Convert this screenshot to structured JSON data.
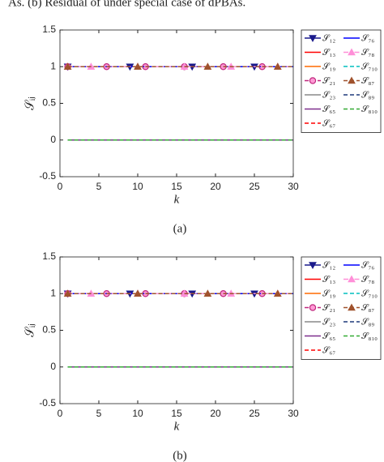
{
  "caption_fragment": "As. (b) Residual of under special case of dPBAs.",
  "chart_data": [
    {
      "type": "line",
      "caption": "(a)",
      "xlabel": "k",
      "ylabel": "𝒮ᵢⱼ",
      "x": [
        1,
        2,
        3,
        4,
        5,
        6,
        7,
        8,
        9,
        10,
        11,
        12,
        13,
        14,
        15,
        16,
        17,
        18,
        19,
        20,
        21,
        22,
        23,
        24,
        25,
        26,
        27,
        28,
        29,
        30
      ],
      "xlim": [
        0,
        30
      ],
      "xticks": [
        0,
        5,
        10,
        15,
        20,
        25,
        30
      ],
      "ylim": [
        -0.5,
        1.5
      ],
      "yticks": [
        -0.5,
        0,
        0.5,
        1,
        1.5
      ],
      "legend": "outside-right",
      "series": [
        {
          "name": "𝒮₁₂",
          "color": "#1a1a8c",
          "linestyle": "solid",
          "marker": "triangle-down",
          "values": [
            1,
            1,
            1,
            1,
            1,
            1,
            1,
            1,
            1,
            1,
            1,
            1,
            1,
            1,
            1,
            1,
            1,
            1,
            1,
            1,
            1,
            1,
            1,
            1,
            1,
            1,
            1,
            1,
            1,
            1
          ]
        },
        {
          "name": "𝒮₁₃",
          "color": "#ff0000",
          "linestyle": "solid",
          "values": [
            1,
            1,
            1,
            1,
            1,
            1,
            1,
            1,
            1,
            1,
            1,
            1,
            1,
            1,
            1,
            1,
            1,
            1,
            1,
            1,
            1,
            1,
            1,
            1,
            1,
            1,
            1,
            1,
            1,
            1
          ]
        },
        {
          "name": "𝒮₁₉",
          "color": "#ff6a00",
          "linestyle": "solid",
          "values": [
            1,
            1,
            1,
            1,
            1,
            1,
            1,
            1,
            1,
            1,
            1,
            1,
            1,
            1,
            1,
            1,
            1,
            1,
            1,
            1,
            1,
            1,
            1,
            1,
            1,
            1,
            1,
            1,
            1,
            1
          ]
        },
        {
          "name": "𝒮₂₁",
          "color": "#c0297f",
          "linestyle": "dashed",
          "marker": "circle",
          "values": [
            1,
            1,
            1,
            1,
            1,
            1,
            1,
            1,
            1,
            1,
            1,
            1,
            1,
            1,
            1,
            1,
            1,
            1,
            1,
            1,
            1,
            1,
            1,
            1,
            1,
            1,
            1,
            1,
            1,
            1
          ]
        },
        {
          "name": "𝒮₂₃",
          "color": "#888888",
          "linestyle": "solid",
          "values": [
            0,
            0,
            0,
            0,
            0,
            0,
            0,
            0,
            0,
            0,
            0,
            0,
            0,
            0,
            0,
            0,
            0,
            0,
            0,
            0,
            0,
            0,
            0,
            0,
            0,
            0,
            0,
            0,
            0,
            0
          ]
        },
        {
          "name": "𝒮₆₅",
          "color": "#7e2f8e",
          "linestyle": "solid",
          "values": [
            0,
            0,
            0,
            0,
            0,
            0,
            0,
            0,
            0,
            0,
            0,
            0,
            0,
            0,
            0,
            0,
            0,
            0,
            0,
            0,
            0,
            0,
            0,
            0,
            0,
            0,
            0,
            0,
            0,
            0
          ]
        },
        {
          "name": "𝒮₆₇",
          "color": "#ff0000",
          "linestyle": "dashed",
          "values": [
            1,
            1,
            1,
            1,
            1,
            1,
            1,
            1,
            1,
            1,
            1,
            1,
            1,
            1,
            1,
            1,
            1,
            1,
            1,
            1,
            1,
            1,
            1,
            1,
            1,
            1,
            1,
            1,
            1,
            1
          ]
        },
        {
          "name": "𝒮₇₆",
          "color": "#0000ff",
          "linestyle": "solid",
          "values": [
            1,
            1,
            1,
            1,
            1,
            1,
            1,
            1,
            1,
            1,
            1,
            1,
            1,
            1,
            1,
            1,
            1,
            1,
            1,
            1,
            1,
            1,
            1,
            1,
            1,
            1,
            1,
            1,
            1,
            1
          ]
        },
        {
          "name": "𝒮₇₈",
          "color": "#ff8fd8",
          "linestyle": "dashdot",
          "marker": "triangle-up",
          "values": [
            1,
            1,
            1,
            1,
            1,
            1,
            1,
            1,
            1,
            1,
            1,
            1,
            1,
            1,
            1,
            1,
            1,
            1,
            1,
            1,
            1,
            1,
            1,
            1,
            1,
            1,
            1,
            1,
            1,
            1
          ]
        },
        {
          "name": "𝒮₇₁₀",
          "color": "#00bfbf",
          "linestyle": "dashed",
          "values": [
            1,
            1,
            1,
            1,
            1,
            1,
            1,
            1,
            1,
            1,
            1,
            1,
            1,
            1,
            1,
            1,
            1,
            1,
            1,
            1,
            1,
            1,
            1,
            1,
            1,
            1,
            1,
            1,
            1,
            1
          ]
        },
        {
          "name": "𝒮₈₇",
          "color": "#a0522d",
          "linestyle": "dashed",
          "marker": "triangle-up",
          "values": [
            1,
            1,
            1,
            1,
            1,
            1,
            1,
            1,
            1,
            1,
            1,
            1,
            1,
            1,
            1,
            1,
            1,
            1,
            1,
            1,
            1,
            1,
            1,
            1,
            1,
            1,
            1,
            1,
            1,
            1
          ]
        },
        {
          "name": "𝒮₈₉",
          "color": "#1f3a7a",
          "linestyle": "dashed",
          "values": [
            0,
            0,
            0,
            0,
            0,
            0,
            0,
            0,
            0,
            0,
            0,
            0,
            0,
            0,
            0,
            0,
            0,
            0,
            0,
            0,
            0,
            0,
            0,
            0,
            0,
            0,
            0,
            0,
            0,
            0
          ]
        },
        {
          "name": "𝒮₈₁₀",
          "color": "#33aa33",
          "linestyle": "dashed",
          "values": [
            0,
            0,
            0,
            0,
            0,
            0,
            0,
            0,
            0,
            0,
            0,
            0,
            0,
            0,
            0,
            0,
            0,
            0,
            0,
            0,
            0,
            0,
            0,
            0,
            0,
            0,
            0,
            0,
            0,
            0
          ]
        }
      ]
    },
    {
      "type": "line",
      "caption": "(b)",
      "xlabel": "k",
      "ylabel": "𝒮ᵢⱼ",
      "x": [
        1,
        2,
        3,
        4,
        5,
        6,
        7,
        8,
        9,
        10,
        11,
        12,
        13,
        14,
        15,
        16,
        17,
        18,
        19,
        20,
        21,
        22,
        23,
        24,
        25,
        26,
        27,
        28,
        29,
        30
      ],
      "xlim": [
        0,
        30
      ],
      "xticks": [
        0,
        5,
        10,
        15,
        20,
        25,
        30
      ],
      "ylim": [
        -0.5,
        1.5
      ],
      "yticks": [
        -0.5,
        0,
        0.5,
        1,
        1.5
      ],
      "legend": "outside-right",
      "series": [
        {
          "name": "𝒮₁₂",
          "color": "#1a1a8c",
          "linestyle": "solid",
          "marker": "triangle-down",
          "values": [
            1,
            1,
            1,
            1,
            1,
            1,
            1,
            1,
            1,
            1,
            1,
            1,
            1,
            1,
            1,
            1,
            1,
            1,
            1,
            1,
            1,
            1,
            1,
            1,
            1,
            1,
            1,
            1,
            1,
            1
          ]
        },
        {
          "name": "𝒮₁₃",
          "color": "#ff0000",
          "linestyle": "solid",
          "values": [
            1,
            1,
            1,
            1,
            1,
            1,
            1,
            1,
            1,
            1,
            1,
            1,
            1,
            1,
            1,
            1,
            1,
            1,
            1,
            1,
            1,
            1,
            1,
            1,
            1,
            1,
            1,
            1,
            1,
            1
          ]
        },
        {
          "name": "𝒮₁₉",
          "color": "#ff6a00",
          "linestyle": "solid",
          "values": [
            1,
            1,
            1,
            1,
            1,
            1,
            1,
            1,
            1,
            1,
            1,
            1,
            1,
            1,
            1,
            1,
            1,
            1,
            1,
            1,
            1,
            1,
            1,
            1,
            1,
            1,
            1,
            1,
            1,
            1
          ]
        },
        {
          "name": "𝒮₂₁",
          "color": "#c0297f",
          "linestyle": "dashed",
          "marker": "circle",
          "values": [
            1,
            1,
            1,
            1,
            1,
            1,
            1,
            1,
            1,
            1,
            1,
            1,
            1,
            1,
            1,
            1,
            1,
            1,
            1,
            1,
            1,
            1,
            1,
            1,
            1,
            1,
            1,
            1,
            1,
            1
          ]
        },
        {
          "name": "𝒮₂₃",
          "color": "#888888",
          "linestyle": "solid",
          "values": [
            0,
            0,
            0,
            0,
            0,
            0,
            0,
            0,
            0,
            0,
            0,
            0,
            0,
            0,
            0,
            0,
            0,
            0,
            0,
            0,
            0,
            0,
            0,
            0,
            0,
            0,
            0,
            0,
            0,
            0
          ]
        },
        {
          "name": "𝒮₆₅",
          "color": "#7e2f8e",
          "linestyle": "solid",
          "values": [
            0,
            0,
            0,
            0,
            0,
            0,
            0,
            0,
            0,
            0,
            0,
            0,
            0,
            0,
            0,
            0,
            0,
            0,
            0,
            0,
            0,
            0,
            0,
            0,
            0,
            0,
            0,
            0,
            0,
            0
          ]
        },
        {
          "name": "𝒮₆₇",
          "color": "#ff0000",
          "linestyle": "dashed",
          "values": [
            1,
            1,
            1,
            1,
            1,
            1,
            1,
            1,
            1,
            1,
            1,
            1,
            1,
            1,
            1,
            1,
            1,
            1,
            1,
            1,
            1,
            1,
            1,
            1,
            1,
            1,
            1,
            1,
            1,
            1
          ]
        },
        {
          "name": "𝒮₇₆",
          "color": "#0000ff",
          "linestyle": "solid",
          "values": [
            1,
            1,
            1,
            1,
            1,
            1,
            1,
            1,
            1,
            1,
            1,
            1,
            1,
            1,
            1,
            1,
            1,
            1,
            1,
            1,
            1,
            1,
            1,
            1,
            1,
            1,
            1,
            1,
            1,
            1
          ]
        },
        {
          "name": "𝒮₇₈",
          "color": "#ff8fd8",
          "linestyle": "dashdot",
          "marker": "triangle-up",
          "values": [
            1,
            1,
            1,
            1,
            1,
            1,
            1,
            1,
            1,
            1,
            1,
            1,
            1,
            1,
            1,
            1,
            1,
            1,
            1,
            1,
            1,
            1,
            1,
            1,
            1,
            1,
            1,
            1,
            1,
            1
          ]
        },
        {
          "name": "𝒮₇₁₀",
          "color": "#00bfbf",
          "linestyle": "dashed",
          "values": [
            1,
            1,
            1,
            1,
            1,
            1,
            1,
            1,
            1,
            1,
            1,
            1,
            1,
            1,
            1,
            1,
            1,
            1,
            1,
            1,
            1,
            1,
            1,
            1,
            1,
            1,
            1,
            1,
            1,
            1
          ]
        },
        {
          "name": "𝒮₈₇",
          "color": "#a0522d",
          "linestyle": "dashed",
          "marker": "triangle-up",
          "values": [
            1,
            1,
            1,
            1,
            1,
            1,
            1,
            1,
            1,
            1,
            1,
            1,
            1,
            1,
            1,
            1,
            1,
            1,
            1,
            1,
            1,
            1,
            1,
            1,
            1,
            1,
            1,
            1,
            1,
            1
          ]
        },
        {
          "name": "𝒮₈₉",
          "color": "#1f3a7a",
          "linestyle": "dashed",
          "values": [
            0,
            0,
            0,
            0,
            0,
            0,
            0,
            0,
            0,
            0,
            0,
            0,
            0,
            0,
            0,
            0,
            0,
            0,
            0,
            0,
            0,
            0,
            0,
            0,
            0,
            0,
            0,
            0,
            0,
            0
          ]
        },
        {
          "name": "𝒮₈₁₀",
          "color": "#33aa33",
          "linestyle": "dashed",
          "values": [
            0,
            0,
            0,
            0,
            0,
            0,
            0,
            0,
            0,
            0,
            0,
            0,
            0,
            0,
            0,
            0,
            0,
            0,
            0,
            0,
            0,
            0,
            0,
            0,
            0,
            0,
            0,
            0,
            0,
            0
          ]
        }
      ]
    }
  ]
}
